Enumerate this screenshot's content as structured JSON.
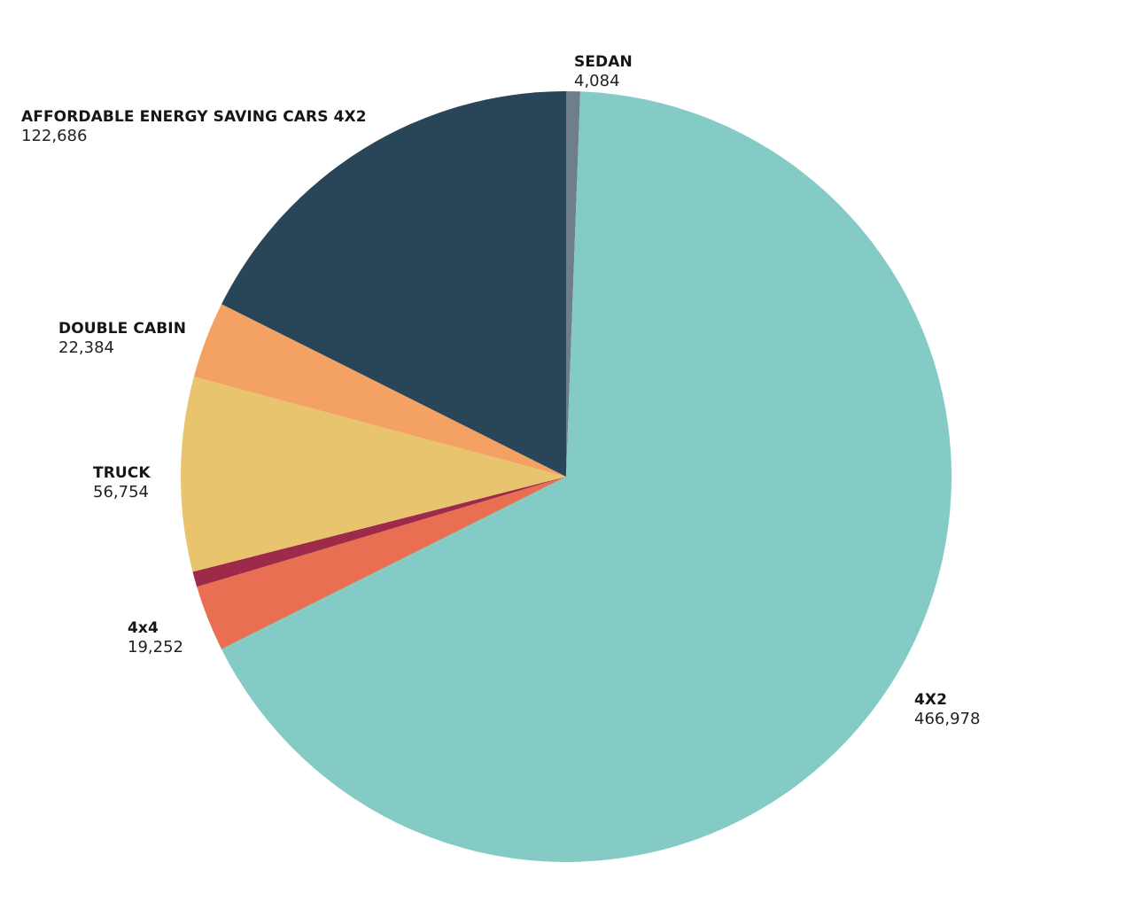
{
  "chart_data": {
    "type": "pie",
    "title": "",
    "start_angle_deg": 0,
    "direction": "clockwise",
    "slices": [
      {
        "label": "SEDAN",
        "value": 4084,
        "value_text": "4,084",
        "color": "#6e7f89",
        "show_label": true
      },
      {
        "label": "4X2",
        "value": 466978,
        "value_text": "466,978",
        "color": "#84cbc6",
        "show_label": true
      },
      {
        "label": "4x4",
        "value": 19252,
        "value_text": "19,252",
        "color": "#e86f52",
        "show_label": true
      },
      {
        "label": "",
        "value": 4500,
        "value_text": "",
        "color": "#9e2a4a",
        "show_label": false
      },
      {
        "label": "TRUCK",
        "value": 56754,
        "value_text": "56,754",
        "color": "#e9c46e",
        "show_label": true
      },
      {
        "label": "DOUBLE CABIN",
        "value": 22384,
        "value_text": "22,384",
        "color": "#f3a263",
        "show_label": true
      },
      {
        "label": "AFFORDABLE ENERGY SAVING CARS 4X2",
        "value": 122686,
        "value_text": "122,686",
        "color": "#284657",
        "show_label": true
      }
    ],
    "legend": "none (direct labels)",
    "center": [
      639,
      538
    ],
    "radius": 435
  },
  "labels": {
    "sedan": {
      "name": "SEDAN",
      "value": "4,084"
    },
    "x4x2": {
      "name": "4X2",
      "value": "466,978"
    },
    "x4x4": {
      "name": "4x4",
      "value": "19,252"
    },
    "truck": {
      "name": "TRUCK",
      "value": "56,754"
    },
    "double_cabin": {
      "name": "DOUBLE CABIN",
      "value": "22,384"
    },
    "affordable": {
      "name": "AFFORDABLE ENERGY SAVING CARS 4X2",
      "value": "122,686"
    }
  }
}
